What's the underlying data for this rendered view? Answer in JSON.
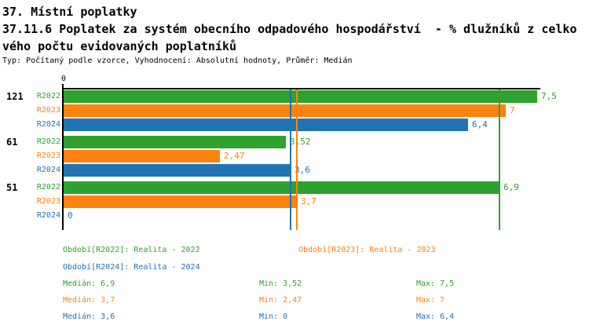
{
  "header": {
    "title": "37. Místní poplatky",
    "subtitle_line1": "37.11.6 Poplatek za systém obecního odpadového hospodářství  - % dlužníků z celko",
    "subtitle_line2": "vého počtu evidovaných poplatníků",
    "meta": "Typ: Počítaný podle vzorce, Vyhodnocení: Absolutní hodnoty, Průměr: Medián"
  },
  "chart_data": {
    "type": "bar",
    "orientation": "horizontal",
    "title": "",
    "xlabel": "",
    "ylabel": "",
    "axis": {
      "origin_tick_label": "0",
      "xlim": [
        0,
        7.56
      ],
      "gridlines": false
    },
    "series": [
      {
        "id": "R2022",
        "name": "Realita - 2022",
        "color": "#2ea12e"
      },
      {
        "id": "R2023",
        "name": "Realita - 2023",
        "color": "#ff820e"
      },
      {
        "id": "R2024",
        "name": "Realita - 2024",
        "color": "#2173b4"
      }
    ],
    "groups": [
      {
        "label": "121",
        "values": [
          {
            "series": "R2022",
            "value": 7.5,
            "label": "7,5"
          },
          {
            "series": "R2023",
            "value": 7,
            "label": "7"
          },
          {
            "series": "R2024",
            "value": 6.4,
            "label": "6,4"
          }
        ]
      },
      {
        "label": "61",
        "values": [
          {
            "series": "R2022",
            "value": 3.52,
            "label": "3,52"
          },
          {
            "series": "R2023",
            "value": 2.47,
            "label": "2,47"
          },
          {
            "series": "R2024",
            "value": 3.6,
            "label": "3,6"
          }
        ]
      },
      {
        "label": "51",
        "values": [
          {
            "series": "R2022",
            "value": 6.9,
            "label": "6,9"
          },
          {
            "series": "R2023",
            "value": 3.7,
            "label": "3,7"
          },
          {
            "series": "R2024",
            "value": 0,
            "label": "0"
          }
        ]
      }
    ],
    "median_lines": [
      {
        "series": "R2022",
        "value": 6.9
      },
      {
        "series": "R2023",
        "value": 3.7
      },
      {
        "series": "R2024",
        "value": 3.6
      }
    ]
  },
  "legend": [
    {
      "series": "R2022",
      "label": "Období[R2022]: Realita - 2022",
      "col": 0,
      "row": 0
    },
    {
      "series": "R2023",
      "label": "Období[R2023]: Realita - 2023",
      "col": 1,
      "row": 0
    },
    {
      "series": "R2024",
      "label": "Období[R2024]: Realita - 2024",
      "col": 0,
      "row": 1
    }
  ],
  "stats": [
    {
      "series": "R2022",
      "median": "Medián: 6,9",
      "min": "Min: 3,52",
      "max": "Max: 7,5"
    },
    {
      "series": "R2023",
      "median": "Medián: 3,7",
      "min": "Min: 2,47",
      "max": "Max: 7"
    },
    {
      "series": "R2024",
      "median": "Medián: 3,6",
      "min": "Min: 0",
      "max": "Max: 6,4"
    }
  ]
}
